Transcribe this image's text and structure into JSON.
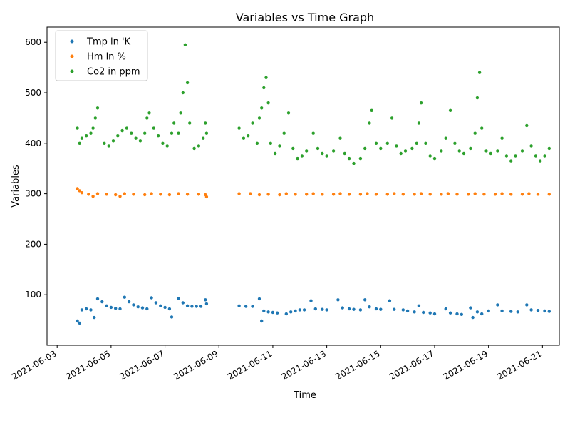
{
  "chart_data": {
    "type": "scatter",
    "title": "Variables vs Time Graph",
    "xlabel": "Time",
    "ylabel": "Variables",
    "x_range": [
      "2021-06-02T15:00:00",
      "2021-06-21T15:00:00"
    ],
    "ylim": [
      0,
      630
    ],
    "y_ticks": [
      100,
      200,
      300,
      400,
      500,
      600
    ],
    "x_ticks": [
      "2021-06-03",
      "2021-06-05",
      "2021-06-07",
      "2021-06-09",
      "2021-06-11",
      "2021-06-13",
      "2021-06-15",
      "2021-06-17",
      "2021-06-19",
      "2021-06-21"
    ],
    "grid": false,
    "legend_position": "top-left",
    "series": [
      {
        "name": "Tmp in 'K",
        "color": "#1f77b4",
        "points": [
          [
            "2021-06-03T18:00",
            48
          ],
          [
            "2021-06-03T20:00",
            44
          ],
          [
            "2021-06-03T22:00",
            70
          ],
          [
            "2021-06-04T02:00",
            72
          ],
          [
            "2021-06-04T06:00",
            70
          ],
          [
            "2021-06-04T09:00",
            55
          ],
          [
            "2021-06-04T12:00",
            92
          ],
          [
            "2021-06-04T16:00",
            86
          ],
          [
            "2021-06-04T20:00",
            78
          ],
          [
            "2021-06-05T00:00",
            75
          ],
          [
            "2021-06-05T04:00",
            73
          ],
          [
            "2021-06-05T08:00",
            72
          ],
          [
            "2021-06-05T12:00",
            95
          ],
          [
            "2021-06-05T16:00",
            86
          ],
          [
            "2021-06-05T20:00",
            80
          ],
          [
            "2021-06-06T00:00",
            76
          ],
          [
            "2021-06-06T04:00",
            74
          ],
          [
            "2021-06-06T08:00",
            72
          ],
          [
            "2021-06-06T12:00",
            94
          ],
          [
            "2021-06-06T16:00",
            84
          ],
          [
            "2021-06-06T20:00",
            78
          ],
          [
            "2021-06-07T00:00",
            75
          ],
          [
            "2021-06-07T04:00",
            72
          ],
          [
            "2021-06-07T06:00",
            56
          ],
          [
            "2021-06-07T12:00",
            93
          ],
          [
            "2021-06-07T16:00",
            84
          ],
          [
            "2021-06-07T20:00",
            78
          ],
          [
            "2021-06-08T00:00",
            77
          ],
          [
            "2021-06-08T04:00",
            77
          ],
          [
            "2021-06-08T08:00",
            77
          ],
          [
            "2021-06-08T12:00",
            90
          ],
          [
            "2021-06-08T13:00",
            82
          ],
          [
            "2021-06-09T18:00",
            78
          ],
          [
            "2021-06-10T00:00",
            77
          ],
          [
            "2021-06-10T06:00",
            77
          ],
          [
            "2021-06-10T12:00",
            92
          ],
          [
            "2021-06-10T14:00",
            48
          ],
          [
            "2021-06-10T16:00",
            68
          ],
          [
            "2021-06-10T20:00",
            66
          ],
          [
            "2021-06-11T00:00",
            65
          ],
          [
            "2021-06-11T04:00",
            64
          ],
          [
            "2021-06-11T12:00",
            62
          ],
          [
            "2021-06-11T16:00",
            66
          ],
          [
            "2021-06-11T20:00",
            68
          ],
          [
            "2021-06-12T00:00",
            70
          ],
          [
            "2021-06-12T04:00",
            70
          ],
          [
            "2021-06-12T10:00",
            88
          ],
          [
            "2021-06-12T14:00",
            72
          ],
          [
            "2021-06-12T20:00",
            71
          ],
          [
            "2021-06-13T00:00",
            70
          ],
          [
            "2021-06-13T10:00",
            90
          ],
          [
            "2021-06-13T14:00",
            74
          ],
          [
            "2021-06-13T20:00",
            72
          ],
          [
            "2021-06-14T00:00",
            71
          ],
          [
            "2021-06-14T06:00",
            70
          ],
          [
            "2021-06-14T10:00",
            90
          ],
          [
            "2021-06-14T14:00",
            76
          ],
          [
            "2021-06-14T20:00",
            72
          ],
          [
            "2021-06-15T00:00",
            71
          ],
          [
            "2021-06-15T08:00",
            88
          ],
          [
            "2021-06-15T12:00",
            71
          ],
          [
            "2021-06-15T20:00",
            70
          ],
          [
            "2021-06-16T00:00",
            68
          ],
          [
            "2021-06-16T06:00",
            66
          ],
          [
            "2021-06-16T10:00",
            78
          ],
          [
            "2021-06-16T14:00",
            65
          ],
          [
            "2021-06-16T20:00",
            64
          ],
          [
            "2021-06-17T00:00",
            62
          ],
          [
            "2021-06-17T10:00",
            72
          ],
          [
            "2021-06-17T14:00",
            64
          ],
          [
            "2021-06-17T20:00",
            62
          ],
          [
            "2021-06-18T00:00",
            61
          ],
          [
            "2021-06-18T08:00",
            74
          ],
          [
            "2021-06-18T10:00",
            55
          ],
          [
            "2021-06-18T14:00",
            66
          ],
          [
            "2021-06-18T18:00",
            62
          ],
          [
            "2021-06-19T00:00",
            68
          ],
          [
            "2021-06-19T08:00",
            80
          ],
          [
            "2021-06-19T12:00",
            68
          ],
          [
            "2021-06-19T20:00",
            67
          ],
          [
            "2021-06-20T02:00",
            66
          ],
          [
            "2021-06-20T10:00",
            80
          ],
          [
            "2021-06-20T14:00",
            70
          ],
          [
            "2021-06-20T20:00",
            69
          ],
          [
            "2021-06-21T02:00",
            68
          ],
          [
            "2021-06-21T06:00",
            67
          ]
        ]
      },
      {
        "name": "Hm in %",
        "color": "#ff7f0e",
        "points": [
          [
            "2021-06-03T18:00",
            310
          ],
          [
            "2021-06-03T20:00",
            306
          ],
          [
            "2021-06-03T22:00",
            302
          ],
          [
            "2021-06-04T04:00",
            299
          ],
          [
            "2021-06-04T08:00",
            295
          ],
          [
            "2021-06-04T12:00",
            300
          ],
          [
            "2021-06-04T20:00",
            299
          ],
          [
            "2021-06-05T04:00",
            298
          ],
          [
            "2021-06-05T08:00",
            295
          ],
          [
            "2021-06-05T12:00",
            300
          ],
          [
            "2021-06-05T20:00",
            299
          ],
          [
            "2021-06-06T06:00",
            298
          ],
          [
            "2021-06-06T12:00",
            300
          ],
          [
            "2021-06-06T20:00",
            299
          ],
          [
            "2021-06-07T04:00",
            298
          ],
          [
            "2021-06-07T12:00",
            300
          ],
          [
            "2021-06-07T20:00",
            299
          ],
          [
            "2021-06-08T06:00",
            299
          ],
          [
            "2021-06-08T12:00",
            298
          ],
          [
            "2021-06-08T13:00",
            294
          ],
          [
            "2021-06-09T18:00",
            300
          ],
          [
            "2021-06-10T04:00",
            300
          ],
          [
            "2021-06-10T12:00",
            298
          ],
          [
            "2021-06-10T20:00",
            299
          ],
          [
            "2021-06-11T06:00",
            298
          ],
          [
            "2021-06-11T12:00",
            300
          ],
          [
            "2021-06-11T20:00",
            299
          ],
          [
            "2021-06-12T06:00",
            299
          ],
          [
            "2021-06-12T12:00",
            300
          ],
          [
            "2021-06-12T20:00",
            299
          ],
          [
            "2021-06-13T06:00",
            299
          ],
          [
            "2021-06-13T12:00",
            300
          ],
          [
            "2021-06-13T20:00",
            299
          ],
          [
            "2021-06-14T06:00",
            299
          ],
          [
            "2021-06-14T12:00",
            300
          ],
          [
            "2021-06-14T20:00",
            299
          ],
          [
            "2021-06-15T06:00",
            299
          ],
          [
            "2021-06-15T12:00",
            300
          ],
          [
            "2021-06-15T20:00",
            299
          ],
          [
            "2021-06-16T06:00",
            299
          ],
          [
            "2021-06-16T12:00",
            300
          ],
          [
            "2021-06-16T20:00",
            299
          ],
          [
            "2021-06-17T06:00",
            299
          ],
          [
            "2021-06-17T12:00",
            300
          ],
          [
            "2021-06-17T20:00",
            299
          ],
          [
            "2021-06-18T06:00",
            299
          ],
          [
            "2021-06-18T12:00",
            300
          ],
          [
            "2021-06-18T20:00",
            299
          ],
          [
            "2021-06-19T06:00",
            299
          ],
          [
            "2021-06-19T12:00",
            300
          ],
          [
            "2021-06-19T20:00",
            299
          ],
          [
            "2021-06-20T06:00",
            299
          ],
          [
            "2021-06-20T12:00",
            300
          ],
          [
            "2021-06-20T20:00",
            299
          ],
          [
            "2021-06-21T06:00",
            299
          ]
        ]
      },
      {
        "name": "Co2 in ppm",
        "color": "#2ca02c",
        "points": [
          [
            "2021-06-03T18:00",
            430
          ],
          [
            "2021-06-03T20:00",
            400
          ],
          [
            "2021-06-03T22:00",
            410
          ],
          [
            "2021-06-04T02:00",
            415
          ],
          [
            "2021-06-04T06:00",
            420
          ],
          [
            "2021-06-04T08:00",
            430
          ],
          [
            "2021-06-04T10:00",
            450
          ],
          [
            "2021-06-04T12:00",
            470
          ],
          [
            "2021-06-04T18:00",
            400
          ],
          [
            "2021-06-04T22:00",
            395
          ],
          [
            "2021-06-05T02:00",
            405
          ],
          [
            "2021-06-05T06:00",
            415
          ],
          [
            "2021-06-05T10:00",
            425
          ],
          [
            "2021-06-05T14:00",
            430
          ],
          [
            "2021-06-05T18:00",
            420
          ],
          [
            "2021-06-05T22:00",
            410
          ],
          [
            "2021-06-06T02:00",
            405
          ],
          [
            "2021-06-06T06:00",
            420
          ],
          [
            "2021-06-06T08:00",
            450
          ],
          [
            "2021-06-06T10:00",
            460
          ],
          [
            "2021-06-06T14:00",
            430
          ],
          [
            "2021-06-06T18:00",
            415
          ],
          [
            "2021-06-06T22:00",
            400
          ],
          [
            "2021-06-07T02:00",
            395
          ],
          [
            "2021-06-07T06:00",
            420
          ],
          [
            "2021-06-07T08:00",
            440
          ],
          [
            "2021-06-07T12:00",
            420
          ],
          [
            "2021-06-07T14:00",
            460
          ],
          [
            "2021-06-07T16:00",
            500
          ],
          [
            "2021-06-07T18:00",
            595
          ],
          [
            "2021-06-07T20:00",
            520
          ],
          [
            "2021-06-07T22:00",
            440
          ],
          [
            "2021-06-08T02:00",
            390
          ],
          [
            "2021-06-08T06:00",
            395
          ],
          [
            "2021-06-08T10:00",
            410
          ],
          [
            "2021-06-08T12:00",
            440
          ],
          [
            "2021-06-08T13:00",
            420
          ],
          [
            "2021-06-09T18:00",
            430
          ],
          [
            "2021-06-09T22:00",
            410
          ],
          [
            "2021-06-10T02:00",
            415
          ],
          [
            "2021-06-10T06:00",
            440
          ],
          [
            "2021-06-10T10:00",
            400
          ],
          [
            "2021-06-10T12:00",
            450
          ],
          [
            "2021-06-10T14:00",
            470
          ],
          [
            "2021-06-10T16:00",
            510
          ],
          [
            "2021-06-10T18:00",
            530
          ],
          [
            "2021-06-10T20:00",
            480
          ],
          [
            "2021-06-10T22:00",
            400
          ],
          [
            "2021-06-11T02:00",
            380
          ],
          [
            "2021-06-11T06:00",
            395
          ],
          [
            "2021-06-11T10:00",
            420
          ],
          [
            "2021-06-11T14:00",
            460
          ],
          [
            "2021-06-11T18:00",
            390
          ],
          [
            "2021-06-11T22:00",
            370
          ],
          [
            "2021-06-12T02:00",
            375
          ],
          [
            "2021-06-12T06:00",
            385
          ],
          [
            "2021-06-12T12:00",
            420
          ],
          [
            "2021-06-12T16:00",
            390
          ],
          [
            "2021-06-12T20:00",
            380
          ],
          [
            "2021-06-13T00:00",
            375
          ],
          [
            "2021-06-13T06:00",
            385
          ],
          [
            "2021-06-13T12:00",
            410
          ],
          [
            "2021-06-13T16:00",
            380
          ],
          [
            "2021-06-13T20:00",
            370
          ],
          [
            "2021-06-14T00:00",
            360
          ],
          [
            "2021-06-14T06:00",
            370
          ],
          [
            "2021-06-14T10:00",
            390
          ],
          [
            "2021-06-14T14:00",
            440
          ],
          [
            "2021-06-14T16:00",
            465
          ],
          [
            "2021-06-14T20:00",
            400
          ],
          [
            "2021-06-15T00:00",
            390
          ],
          [
            "2021-06-15T06:00",
            400
          ],
          [
            "2021-06-15T10:00",
            450
          ],
          [
            "2021-06-15T14:00",
            395
          ],
          [
            "2021-06-15T18:00",
            380
          ],
          [
            "2021-06-15T22:00",
            385
          ],
          [
            "2021-06-16T04:00",
            390
          ],
          [
            "2021-06-16T08:00",
            400
          ],
          [
            "2021-06-16T10:00",
            440
          ],
          [
            "2021-06-16T12:00",
            480
          ],
          [
            "2021-06-16T16:00",
            400
          ],
          [
            "2021-06-16T20:00",
            375
          ],
          [
            "2021-06-17T00:00",
            370
          ],
          [
            "2021-06-17T06:00",
            385
          ],
          [
            "2021-06-17T10:00",
            410
          ],
          [
            "2021-06-17T14:00",
            465
          ],
          [
            "2021-06-17T18:00",
            400
          ],
          [
            "2021-06-17T22:00",
            385
          ],
          [
            "2021-06-18T02:00",
            380
          ],
          [
            "2021-06-18T08:00",
            390
          ],
          [
            "2021-06-18T12:00",
            420
          ],
          [
            "2021-06-18T14:00",
            490
          ],
          [
            "2021-06-18T16:00",
            540
          ],
          [
            "2021-06-18T18:00",
            430
          ],
          [
            "2021-06-18T22:00",
            385
          ],
          [
            "2021-06-19T02:00",
            380
          ],
          [
            "2021-06-19T08:00",
            385
          ],
          [
            "2021-06-19T12:00",
            410
          ],
          [
            "2021-06-19T16:00",
            375
          ],
          [
            "2021-06-19T20:00",
            365
          ],
          [
            "2021-06-20T00:00",
            375
          ],
          [
            "2021-06-20T06:00",
            385
          ],
          [
            "2021-06-20T10:00",
            435
          ],
          [
            "2021-06-20T14:00",
            395
          ],
          [
            "2021-06-20T18:00",
            375
          ],
          [
            "2021-06-20T22:00",
            365
          ],
          [
            "2021-06-21T02:00",
            375
          ],
          [
            "2021-06-21T06:00",
            390
          ]
        ]
      }
    ]
  }
}
